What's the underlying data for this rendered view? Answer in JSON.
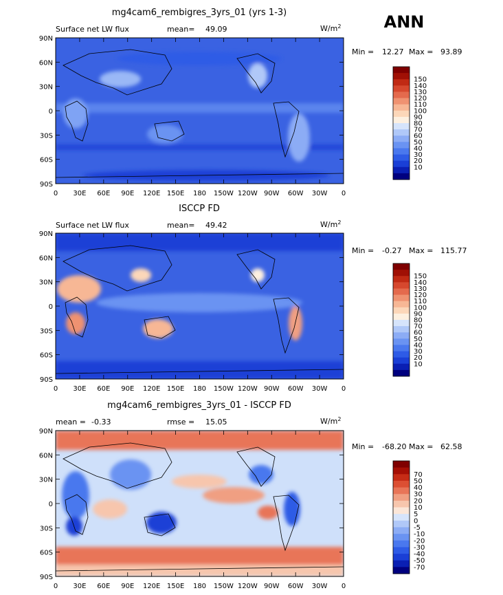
{
  "season": "ANN",
  "colors": {
    "abs_scale": [
      "#00007f",
      "#0a1fb3",
      "#1a3fd6",
      "#2e5be6",
      "#4a78ee",
      "#6a93f2",
      "#8cacf5",
      "#b0c8f8",
      "#d6e4fb",
      "#fdf0e0",
      "#fcd7b9",
      "#f7b795",
      "#ef9271",
      "#e46a4d",
      "#d6482e",
      "#c02a14",
      "#a01005",
      "#7f0000"
    ],
    "diff_scale": [
      "#00007f",
      "#0a1fb3",
      "#1a3fd6",
      "#2e5be6",
      "#4a78ee",
      "#6a93f2",
      "#8cacf5",
      "#b0c8f8",
      "#d6e4fb",
      "#fbe6d8",
      "#f7c6ad",
      "#f09f82",
      "#e87558",
      "#dc4f33",
      "#c62c16",
      "#a50f05",
      "#7f0000"
    ],
    "land_outline": "#000000"
  },
  "chart_data": [
    {
      "type": "heatmap",
      "title": "mg4cam6_rembigres_3yrs_01 (yrs 1-3)",
      "left_label": "Surface net LW flux",
      "stat_label": "mean=",
      "stat_value": "49.09",
      "units": "W/m",
      "units_sup": "2",
      "min_label": "Min =",
      "min_value": "12.27",
      "max_label": "Max =",
      "max_value": "93.89",
      "x_ticks": [
        "0",
        "30E",
        "60E",
        "90E",
        "120E",
        "150E",
        "180",
        "150W",
        "120W",
        "90W",
        "60W",
        "30W",
        "0"
      ],
      "y_ticks": [
        "90N",
        "60N",
        "30N",
        "0",
        "30S",
        "60S",
        "90S"
      ],
      "xlim": [
        0,
        360
      ],
      "ylim": [
        -90,
        90
      ],
      "colorbar_labels": [
        "150",
        "140",
        "130",
        "120",
        "110",
        "100",
        "90",
        "80",
        "70",
        "60",
        "50",
        "40",
        "30",
        "20",
        "10"
      ]
    },
    {
      "type": "heatmap",
      "title": "ISCCP FD",
      "left_label": "Surface net LW flux",
      "stat_label": "mean=",
      "stat_value": "49.42",
      "units": "W/m",
      "units_sup": "2",
      "min_label": "Min =",
      "min_value": "-0.27",
      "max_label": "Max =",
      "max_value": "115.77",
      "x_ticks": [
        "0",
        "30E",
        "60E",
        "90E",
        "120E",
        "150E",
        "180",
        "150W",
        "120W",
        "90W",
        "60W",
        "30W",
        "0"
      ],
      "y_ticks": [
        "90N",
        "60N",
        "30N",
        "0",
        "30S",
        "60S",
        "90S"
      ],
      "xlim": [
        0,
        360
      ],
      "ylim": [
        -90,
        90
      ],
      "colorbar_labels": [
        "150",
        "140",
        "130",
        "120",
        "110",
        "100",
        "90",
        "80",
        "70",
        "60",
        "50",
        "40",
        "30",
        "20",
        "10"
      ]
    },
    {
      "type": "heatmap",
      "title": "mg4cam6_rembigres_3yrs_01 - ISCCP FD",
      "left_label": "mean =",
      "left_value": "-0.33",
      "stat_label": "rmse =",
      "stat_value": "15.05",
      "units": "W/m",
      "units_sup": "2",
      "min_label": "Min =",
      "min_value": "-68.20",
      "max_label": "Max =",
      "max_value": "62.58",
      "x_ticks": [
        "0",
        "30E",
        "60E",
        "90E",
        "120E",
        "150E",
        "180",
        "150W",
        "120W",
        "90W",
        "60W",
        "30W",
        "0"
      ],
      "y_ticks": [
        "90N",
        "60N",
        "30N",
        "0",
        "30S",
        "60S",
        "90S"
      ],
      "xlim": [
        0,
        360
      ],
      "ylim": [
        -90,
        90
      ],
      "colorbar_labels": [
        "70",
        "50",
        "40",
        "30",
        "20",
        "10",
        "5",
        "0",
        "-5",
        "-10",
        "-20",
        "-30",
        "-40",
        "-50",
        "-70"
      ]
    }
  ]
}
